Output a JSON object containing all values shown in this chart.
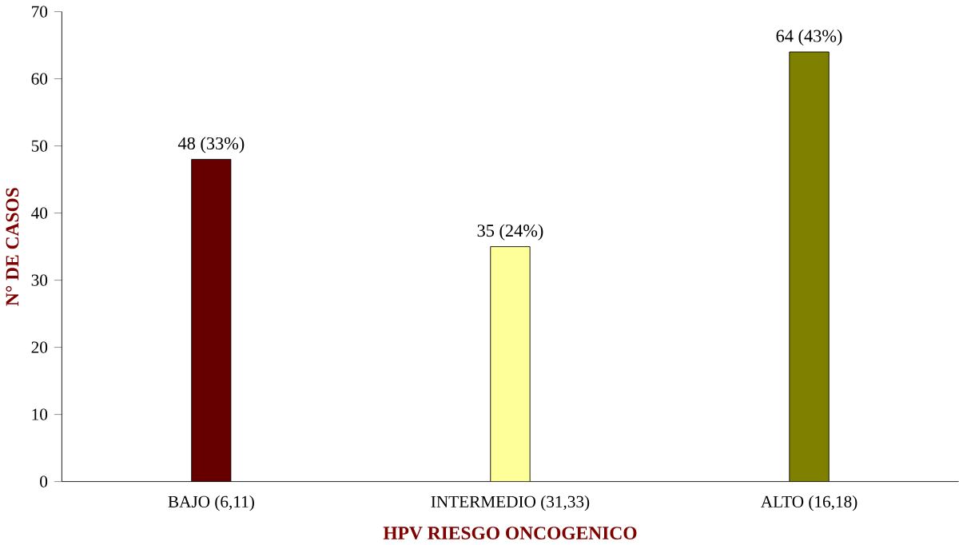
{
  "chart_data": {
    "type": "bar",
    "categories": [
      "BAJO (6,11)",
      "INTERMEDIO (31,33)",
      "ALTO (16,18)"
    ],
    "values": [
      48,
      35,
      64
    ],
    "colors": [
      "#660000",
      "#ffff99",
      "#808000"
    ],
    "value_labels": [
      "48 (33%)",
      "35 (24%)",
      "64 (43%)"
    ],
    "xlabel": "HPV RIESGO ONCOGENICO",
    "ylabel": "N° DE CASOS",
    "ylim": [
      0,
      70
    ],
    "yticks": [
      0,
      10,
      20,
      30,
      40,
      50,
      60,
      70
    ],
    "grid": false
  }
}
